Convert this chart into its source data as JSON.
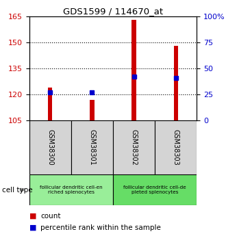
{
  "title": "GDS1599 / 114670_at",
  "samples": [
    "GSM38300",
    "GSM38301",
    "GSM38302",
    "GSM38303"
  ],
  "count_values": [
    124,
    117,
    163,
    148
  ],
  "percentile_values": [
    27,
    27,
    42,
    41
  ],
  "ylim_left": [
    105,
    165
  ],
  "ylim_right": [
    0,
    100
  ],
  "yticks_left": [
    105,
    120,
    135,
    150,
    165
  ],
  "yticks_right": [
    0,
    25,
    50,
    75,
    100
  ],
  "ytick_labels_right": [
    "0",
    "25",
    "50",
    "75",
    "100%"
  ],
  "bar_color": "#cc0000",
  "square_color": "#0000cc",
  "cell_type_groups": [
    {
      "label": "follicular dendritic cell-en\nriched splenocytes",
      "start": 0,
      "end": 2,
      "color": "#99ee99"
    },
    {
      "label": "follicular dendritic cell-de\npleted splenocytes",
      "start": 2,
      "end": 4,
      "color": "#66dd66"
    }
  ],
  "cell_type_label": "cell type",
  "legend_count_label": "count",
  "legend_percentile_label": "percentile rank within the sample",
  "bar_base": 105,
  "right_axis_color": "#0000cc",
  "left_axis_color": "#cc0000",
  "sample_box_color": "#d4d4d4",
  "bar_width": 0.1
}
